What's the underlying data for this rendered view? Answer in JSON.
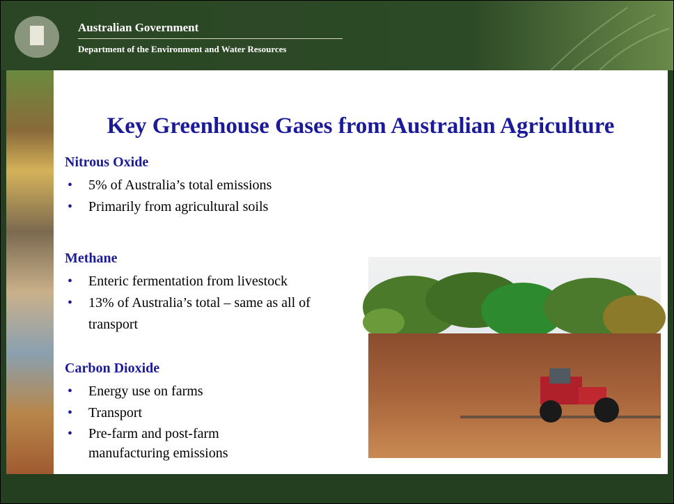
{
  "header": {
    "organisation": "Australian Government",
    "department": "Department of the Environment and Water Resources"
  },
  "slide": {
    "title": "Key Greenhouse Gases from Australian Agriculture",
    "sections": [
      {
        "heading": "Nitrous Oxide",
        "bullets": [
          "5% of Australia’s total emissions",
          "Primarily from agricultural soils"
        ]
      },
      {
        "heading": "Methane",
        "bullets": [
          "Enteric fermentation from livestock",
          "13% of Australia’s total – same as all of transport"
        ]
      },
      {
        "heading": "Carbon Dioxide",
        "bullets": [
          "Energy use on farms",
          "Transport",
          "Pre-farm and post-farm manufacturing emissions"
        ]
      }
    ]
  }
}
